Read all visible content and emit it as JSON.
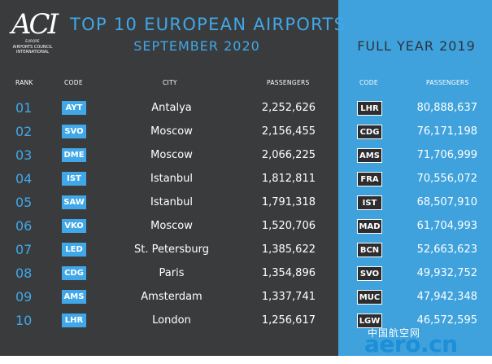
{
  "logo": {
    "mark": "ACI",
    "subtitle": "EUROPE",
    "org_lines": [
      "AIRPORTS COUNCIL",
      "INTERNATIONAL"
    ]
  },
  "title": {
    "main": "TOP 10 EUROPEAN AIRPORTS",
    "sub": "SEPTEMBER 2020",
    "right": "FULL YEAR 2019"
  },
  "headers": {
    "rank": "RANK",
    "code": "CODE",
    "city": "CITY",
    "passengers": "PASSENGERS",
    "code_right": "CODE",
    "passengers_right": "PASSENGERS"
  },
  "rows": [
    {
      "rank": "01",
      "code": "AYT",
      "city": "Antalya",
      "passengers": "2,252,626",
      "code2019": "LHR",
      "passengers2019": "80,888,637"
    },
    {
      "rank": "02",
      "code": "SVO",
      "city": "Moscow",
      "passengers": "2,156,455",
      "code2019": "CDG",
      "passengers2019": "76,171,198"
    },
    {
      "rank": "03",
      "code": "DME",
      "city": "Moscow",
      "passengers": "2,066,225",
      "code2019": "AMS",
      "passengers2019": "71,706,999"
    },
    {
      "rank": "04",
      "code": "IST",
      "city": "Istanbul",
      "passengers": "1,812,811",
      "code2019": "FRA",
      "passengers2019": "70,556,072"
    },
    {
      "rank": "05",
      "code": "SAW",
      "city": "Istanbul",
      "passengers": "1,791,318",
      "code2019": "IST",
      "passengers2019": "68,507,910"
    },
    {
      "rank": "06",
      "code": "VKO",
      "city": "Moscow",
      "passengers": "1,520,706",
      "code2019": "MAD",
      "passengers2019": "61,704,993"
    },
    {
      "rank": "07",
      "code": "LED",
      "city": "St. Petersburg",
      "passengers": "1,385,622",
      "code2019": "BCN",
      "passengers2019": "52,663,623"
    },
    {
      "rank": "08",
      "code": "CDG",
      "city": "Paris",
      "passengers": "1,354,896",
      "code2019": "SVO",
      "passengers2019": "49,932,752"
    },
    {
      "rank": "09",
      "code": "AMS",
      "city": "Amsterdam",
      "passengers": "1,337,741",
      "code2019": "MUC",
      "passengers2019": "47,942,348"
    },
    {
      "rank": "10",
      "code": "LHR",
      "city": "London",
      "passengers": "1,256,617",
      "code2019": "LGW",
      "passengers2019": "46,572,595"
    }
  ],
  "watermark": {
    "cn": "中国航空网",
    "en": "aero.cn"
  },
  "colors": {
    "panel_dark": "#3a3b3d",
    "panel_blue": "#3fa2dc",
    "accent_blue": "#40a8e8"
  }
}
